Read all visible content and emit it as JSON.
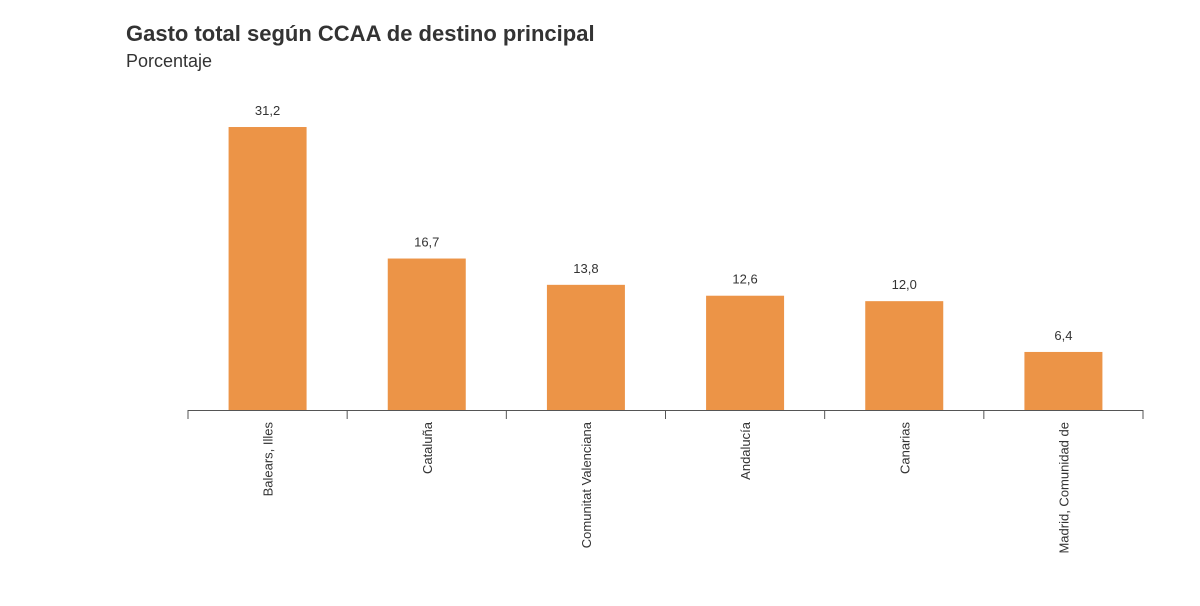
{
  "chart_data": {
    "type": "bar",
    "title": "Gasto total según CCAA de destino principal",
    "subtitle": "Porcentaje",
    "categories": [
      "Balears, Illes",
      "Cataluña",
      "Comunitat Valenciana",
      "Andalucía",
      "Canarias",
      "Madrid, Comunidad de"
    ],
    "values": [
      31.2,
      16.7,
      13.8,
      12.6,
      12.0,
      6.4
    ],
    "value_labels": [
      "31,2",
      "16,7",
      "13,8",
      "12,6",
      "12,0",
      "6,4"
    ],
    "color": "#ec9447"
  }
}
